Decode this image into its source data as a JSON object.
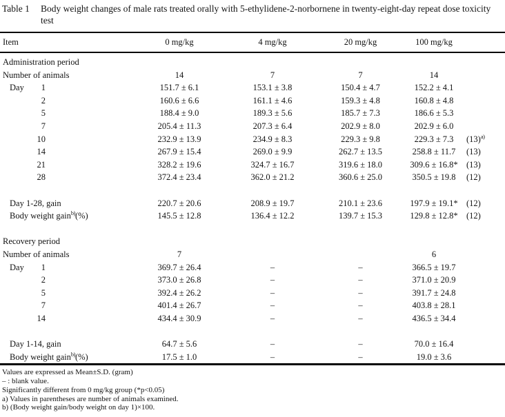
{
  "colors": {
    "background": "#ffffff",
    "text": "#131313",
    "rule": "#000000"
  },
  "table": {
    "tag": "Table 1",
    "caption": "Body weight changes of male rats treated orally with 5-ethylidene-2-norbornene in twenty-eight-day repeat dose toxicity test",
    "head": [
      "Item",
      "0 mg/kg",
      "4 mg/kg",
      "20 mg/kg",
      "100 mg/kg"
    ],
    "rows": [
      {
        "section": "Administration period"
      },
      {
        "label": "Number of animals",
        "values": [
          "14",
          "7",
          "7",
          "14"
        ],
        "annot": ""
      },
      {
        "prefix": "Day",
        "day": "1",
        "values": [
          "151.7 ± 6.1",
          "153.1 ± 3.8",
          "150.4 ± 4.7",
          "152.2 ± 4.1"
        ],
        "annot": ""
      },
      {
        "prefix": "",
        "day": "2",
        "values": [
          "160.6 ± 6.6",
          "161.1 ± 4.6",
          "159.3 ± 4.8",
          "160.8 ± 4.8"
        ],
        "annot": ""
      },
      {
        "prefix": "",
        "day": "5",
        "values": [
          "188.4 ± 9.0",
          "189.3 ± 5.6",
          "185.7 ± 7.3",
          "186.6 ± 5.3"
        ],
        "annot": ""
      },
      {
        "prefix": "",
        "day": "7",
        "values": [
          "205.4 ± 11.3",
          "207.3 ± 6.4",
          "202.9 ± 8.0",
          "202.9 ± 6.0"
        ],
        "annot": ""
      },
      {
        "prefix": "",
        "day": "10",
        "values": [
          "232.9 ± 13.9",
          "234.9 ± 8.3",
          "229.3 ± 9.8",
          "229.3 ± 7.3"
        ],
        "annot": "(13)",
        "annot_sup": "a)"
      },
      {
        "prefix": "",
        "day": "14",
        "values": [
          "267.9 ± 15.4",
          "269.0 ± 9.9",
          "262.7 ± 13.5",
          "258.8 ± 11.7"
        ],
        "annot": "(13)"
      },
      {
        "prefix": "",
        "day": "21",
        "values": [
          "328.2 ± 19.6",
          "324.7 ± 16.7",
          "319.6 ± 18.0",
          "309.6 ± 16.8*"
        ],
        "annot": "(13)"
      },
      {
        "prefix": "",
        "day": "28",
        "values": [
          "372.4 ± 23.4",
          "362.0 ± 21.2",
          "360.6 ± 25.0",
          "350.5 ± 19.8"
        ],
        "annot": "(12)"
      },
      {
        "blank": true
      },
      {
        "label": "Day 1-28, gain",
        "values": [
          "220.7 ± 20.6",
          "208.9 ± 19.7",
          "210.1 ± 23.6",
          "197.9 ± 19.1*"
        ],
        "annot": "(12)"
      },
      {
        "label": "Body weight gain",
        "sup": "b)",
        "suffix": "(%)",
        "values": [
          "145.5 ± 12.8",
          "136.4 ± 12.2",
          "139.7 ± 15.3",
          "129.8 ± 12.8*"
        ],
        "annot": "(12)"
      },
      {
        "blank": true
      },
      {
        "section": "Recovery period"
      },
      {
        "label": "Number of animals",
        "values": [
          "7",
          "",
          "",
          "6"
        ],
        "annot": ""
      },
      {
        "prefix": "Day",
        "day": "1",
        "values": [
          "369.7 ± 26.4",
          "–",
          "–",
          "366.5 ± 19.7"
        ],
        "annot": ""
      },
      {
        "prefix": "",
        "day": "2",
        "values": [
          "373.0 ± 26.8",
          "–",
          "–",
          "371.0 ± 20.9"
        ],
        "annot": ""
      },
      {
        "prefix": "",
        "day": "5",
        "values": [
          "392.4 ± 26.2",
          "–",
          "–",
          "391.7 ± 24.8"
        ],
        "annot": ""
      },
      {
        "prefix": "",
        "day": "7",
        "values": [
          "401.4 ± 26.7",
          "–",
          "–",
          "403.8 ± 28.1"
        ],
        "annot": ""
      },
      {
        "prefix": "",
        "day": "14",
        "values": [
          "434.4 ± 30.9",
          "–",
          "–",
          "436.5 ± 34.4"
        ],
        "annot": ""
      },
      {
        "blank": true
      },
      {
        "label": "Day 1-14, gain",
        "values": [
          "64.7 ± 5.6",
          "–",
          "–",
          "70.0 ± 16.4"
        ],
        "annot": ""
      },
      {
        "label": "Body weight gain",
        "sup": "b)",
        "suffix": "(%)",
        "values": [
          "17.5 ± 1.0",
          "–",
          "–",
          "19.0 ± 3.6"
        ],
        "annot": ""
      }
    ]
  },
  "footnotes": [
    "Values are expressed as Mean±S.D. (gram)",
    "– : blank value.",
    "Significantly different from 0 mg/kg group (*p<0.05)",
    "a) Values in parentheses are number of animals examined.",
    "b) (Body weight gain/body weight on day 1)×100."
  ]
}
